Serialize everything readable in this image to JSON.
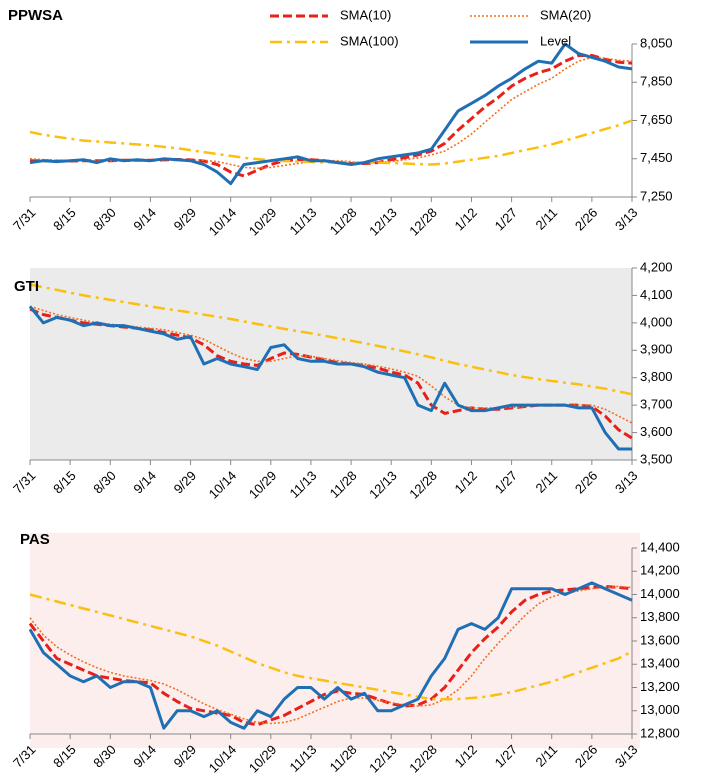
{
  "chart_data": [
    {
      "type": "line",
      "title": "PPWSA",
      "legend": true,
      "categories": [
        "7/31",
        null,
        null,
        "8/15",
        null,
        null,
        "8/30",
        null,
        null,
        "9/14",
        null,
        null,
        "9/29",
        null,
        null,
        "10/14",
        null,
        null,
        "10/29",
        null,
        null,
        "11/13",
        null,
        null,
        "11/28",
        null,
        null,
        "12/13",
        null,
        null,
        "12/28",
        null,
        null,
        "1/12",
        null,
        null,
        "1/27",
        null,
        null,
        "2/11",
        null,
        null,
        "2/26",
        null,
        null,
        "3/13"
      ],
      "ylim": [
        7250,
        8050
      ],
      "yticks": [
        {
          "value": 7250,
          "label": "7,250"
        },
        {
          "value": 7450,
          "label": "7,450"
        },
        {
          "value": 7650,
          "label": "7,650"
        },
        {
          "value": 7850,
          "label": "7,850"
        },
        {
          "value": 8050,
          "label": "8,050"
        }
      ],
      "series": [
        {
          "name": "SMA(10)",
          "color": "#e8201a",
          "values": [
            7440,
            7440,
            7438,
            7438,
            7440,
            7440,
            7440,
            7442,
            7442,
            7442,
            7444,
            7446,
            7444,
            7438,
            7420,
            7380,
            7360,
            7390,
            7420,
            7440,
            7445,
            7445,
            7440,
            7430,
            7425,
            7425,
            7430,
            7445,
            7455,
            7470,
            7490,
            7530,
            7600,
            7660,
            7720,
            7770,
            7830,
            7870,
            7900,
            7920,
            7960,
            7990,
            7990,
            7970,
            7955,
            7950
          ]
        },
        {
          "name": "SMA(20)",
          "color": "#f36f21",
          "values": [
            7450,
            7445,
            7442,
            7440,
            7440,
            7440,
            7440,
            7440,
            7442,
            7442,
            7444,
            7445,
            7445,
            7442,
            7435,
            7420,
            7405,
            7400,
            7405,
            7415,
            7425,
            7435,
            7440,
            7440,
            7435,
            7430,
            7430,
            7435,
            7445,
            7455,
            7470,
            7490,
            7530,
            7580,
            7640,
            7700,
            7760,
            7800,
            7840,
            7870,
            7920,
            7960,
            7980,
            7975,
            7965,
            7960
          ]
        },
        {
          "name": "SMA(100)",
          "color": "#fbbf0f",
          "values": [
            7590,
            7575,
            7565,
            7555,
            7545,
            7540,
            7535,
            7530,
            7525,
            7520,
            7512,
            7505,
            7495,
            7485,
            7475,
            7465,
            7455,
            7448,
            7442,
            7438,
            7435,
            7433,
            7431,
            7430,
            7430,
            7430,
            7430,
            7428,
            7425,
            7422,
            7420,
            7425,
            7435,
            7445,
            7455,
            7465,
            7480,
            7495,
            7510,
            7525,
            7545,
            7565,
            7585,
            7605,
            7625,
            7650
          ]
        },
        {
          "name": "Level",
          "color": "#1f6fb5",
          "values": [
            7430,
            7440,
            7435,
            7440,
            7445,
            7430,
            7450,
            7440,
            7445,
            7440,
            7450,
            7445,
            7440,
            7420,
            7380,
            7320,
            7420,
            7430,
            7440,
            7450,
            7460,
            7440,
            7440,
            7430,
            7420,
            7430,
            7450,
            7460,
            7470,
            7480,
            7500,
            7600,
            7700,
            7740,
            7780,
            7830,
            7870,
            7920,
            7960,
            7950,
            8050,
            8000,
            7980,
            7960,
            7930,
            7920
          ]
        }
      ]
    },
    {
      "type": "line",
      "title": "GTI",
      "background": "#ebebeb",
      "categories": [
        "7/31",
        null,
        null,
        "8/15",
        null,
        null,
        "8/30",
        null,
        null,
        "9/14",
        null,
        null,
        "9/29",
        null,
        null,
        "10/14",
        null,
        null,
        "10/29",
        null,
        null,
        "11/13",
        null,
        null,
        "11/28",
        null,
        null,
        "12/13",
        null,
        null,
        "12/28",
        null,
        null,
        "1/12",
        null,
        null,
        "1/27",
        null,
        null,
        "2/11",
        null,
        null,
        "2/26",
        null,
        null,
        "3/13"
      ],
      "ylim": [
        3500,
        4200
      ],
      "yticks": [
        {
          "value": 3500,
          "label": "3,500"
        },
        {
          "value": 3600,
          "label": "3,600"
        },
        {
          "value": 3700,
          "label": "3,700"
        },
        {
          "value": 3800,
          "label": "3,800"
        },
        {
          "value": 3900,
          "label": "3,900"
        },
        {
          "value": 4000,
          "label": "4,000"
        },
        {
          "value": 4100,
          "label": "4,100"
        },
        {
          "value": 4200,
          "label": "4,200"
        }
      ],
      "series": [
        {
          "color": "#e8201a",
          "values": [
            4050,
            4030,
            4020,
            4010,
            4000,
            3995,
            3990,
            3985,
            3980,
            3975,
            3965,
            3955,
            3945,
            3920,
            3880,
            3860,
            3850,
            3845,
            3870,
            3890,
            3885,
            3875,
            3865,
            3855,
            3850,
            3845,
            3835,
            3820,
            3810,
            3780,
            3700,
            3670,
            3680,
            3690,
            3685,
            3685,
            3690,
            3695,
            3700,
            3700,
            3700,
            3700,
            3695,
            3660,
            3610,
            3580
          ]
        },
        {
          "color": "#f36f21",
          "values": [
            4060,
            4045,
            4030,
            4020,
            4010,
            4000,
            3995,
            3990,
            3985,
            3980,
            3975,
            3965,
            3955,
            3940,
            3915,
            3890,
            3870,
            3860,
            3860,
            3870,
            3880,
            3878,
            3870,
            3862,
            3855,
            3850,
            3842,
            3832,
            3820,
            3805,
            3770,
            3730,
            3700,
            3690,
            3690,
            3690,
            3692,
            3695,
            3698,
            3700,
            3700,
            3700,
            3700,
            3685,
            3660,
            3635
          ]
        },
        {
          "color": "#fbbf0f",
          "values": [
            4140,
            4130,
            4120,
            4110,
            4100,
            4092,
            4084,
            4076,
            4068,
            4060,
            4052,
            4045,
            4038,
            4030,
            4022,
            4014,
            4005,
            3996,
            3987,
            3978,
            3970,
            3962,
            3953,
            3944,
            3935,
            3926,
            3916,
            3906,
            3896,
            3885,
            3874,
            3862,
            3850,
            3840,
            3830,
            3820,
            3810,
            3802,
            3795,
            3788,
            3782,
            3776,
            3768,
            3760,
            3750,
            3740
          ]
        },
        {
          "color": "#1f6fb5",
          "values": [
            4060,
            4000,
            4020,
            4010,
            3990,
            4000,
            3990,
            3990,
            3980,
            3970,
            3960,
            3940,
            3950,
            3850,
            3870,
            3850,
            3840,
            3830,
            3910,
            3920,
            3870,
            3860,
            3860,
            3850,
            3850,
            3840,
            3820,
            3810,
            3800,
            3700,
            3680,
            3780,
            3700,
            3680,
            3680,
            3690,
            3700,
            3700,
            3700,
            3700,
            3700,
            3690,
            3690,
            3600,
            3540,
            3540
          ]
        }
      ]
    },
    {
      "type": "line",
      "title": "PAS",
      "background": "#fdeeee",
      "categories": [
        "7/31",
        null,
        null,
        "8/15",
        null,
        null,
        "8/30",
        null,
        null,
        "9/14",
        null,
        null,
        "9/29",
        null,
        null,
        "10/14",
        null,
        null,
        "10/29",
        null,
        null,
        "11/13",
        null,
        null,
        "11/28",
        null,
        null,
        "12/13",
        null,
        null,
        "12/28",
        null,
        null,
        "1/12",
        null,
        null,
        "1/27",
        null,
        null,
        "2/11",
        null,
        null,
        "2/26",
        null,
        null,
        "3/13"
      ],
      "ylim": [
        12800,
        14400
      ],
      "yticks": [
        {
          "value": 12800,
          "label": "12,800"
        },
        {
          "value": 13000,
          "label": "13,000"
        },
        {
          "value": 13200,
          "label": "13,200"
        },
        {
          "value": 13400,
          "label": "13,400"
        },
        {
          "value": 13600,
          "label": "13,600"
        },
        {
          "value": 13800,
          "label": "13,800"
        },
        {
          "value": 14000,
          "label": "14,000"
        },
        {
          "value": 14200,
          "label": "14,200"
        },
        {
          "value": 14400,
          "label": "14,400"
        }
      ],
      "series": [
        {
          "color": "#e8201a",
          "values": [
            13750,
            13600,
            13450,
            13400,
            13350,
            13300,
            13280,
            13260,
            13250,
            13240,
            13150,
            13080,
            13020,
            13000,
            12980,
            12960,
            12900,
            12880,
            12920,
            12960,
            13020,
            13080,
            13140,
            13170,
            13150,
            13140,
            13100,
            13060,
            13040,
            13050,
            13100,
            13200,
            13350,
            13500,
            13620,
            13720,
            13850,
            13950,
            14000,
            14030,
            14040,
            14050,
            14060,
            14070,
            14060,
            14050
          ]
        },
        {
          "color": "#f36f21",
          "values": [
            13800,
            13650,
            13550,
            13480,
            13420,
            13370,
            13330,
            13300,
            13280,
            13260,
            13230,
            13180,
            13120,
            13060,
            13010,
            12970,
            12930,
            12900,
            12890,
            12900,
            12930,
            12980,
            13030,
            13080,
            13110,
            13110,
            13090,
            13070,
            13050,
            13040,
            13050,
            13100,
            13180,
            13300,
            13450,
            13580,
            13700,
            13820,
            13920,
            13980,
            14010,
            14030,
            14050,
            14060,
            14070,
            14060
          ]
        },
        {
          "color": "#fbbf0f",
          "values": [
            14000,
            13970,
            13940,
            13910,
            13880,
            13850,
            13820,
            13790,
            13760,
            13730,
            13700,
            13670,
            13640,
            13600,
            13560,
            13510,
            13460,
            13410,
            13370,
            13330,
            13300,
            13280,
            13260,
            13240,
            13220,
            13200,
            13180,
            13160,
            13140,
            13120,
            13100,
            13100,
            13100,
            13110,
            13120,
            13140,
            13160,
            13190,
            13220,
            13250,
            13290,
            13330,
            13370,
            13410,
            13450,
            13510
          ]
        },
        {
          "color": "#1f6fb5",
          "values": [
            13700,
            13500,
            13400,
            13300,
            13250,
            13300,
            13200,
            13250,
            13250,
            13200,
            12850,
            13000,
            13000,
            12950,
            13000,
            12900,
            12850,
            13000,
            12950,
            13100,
            13200,
            13200,
            13100,
            13200,
            13100,
            13150,
            13000,
            13000,
            13050,
            13100,
            13300,
            13450,
            13700,
            13750,
            13700,
            13800,
            14050,
            14050,
            14050,
            14050,
            14000,
            14050,
            14100,
            14050,
            14000,
            13950
          ]
        }
      ]
    }
  ]
}
